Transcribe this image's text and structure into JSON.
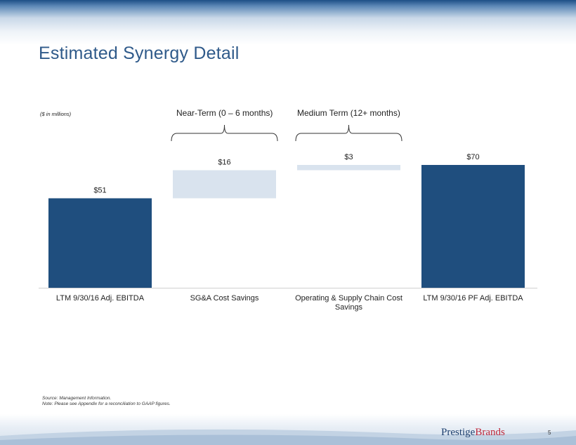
{
  "slide": {
    "title": "Estimated Synergy Detail",
    "units_note": "($ in millions)",
    "page_number": "5"
  },
  "brackets": [
    {
      "label": "Near-Term  (0 – 6 months)",
      "spans_category_index": 1
    },
    {
      "label": "Medium Term (12+ months)",
      "spans_category_index": 2
    }
  ],
  "footnotes": [
    "Source: Management  Information.",
    "Note: Please see Appendix for a reconciliation to GAAP figures."
  ],
  "logo": {
    "part1": "Prestige",
    "part2": "Brands"
  },
  "colors": {
    "total_bar": "#1f4e7e",
    "increment_bar": "#d9e3ee",
    "title": "#2f5a8a",
    "logo_accent": "#c0283a"
  },
  "chart_data": {
    "type": "waterfall",
    "categories": [
      "LTM 9/30/16 Adj. EBITDA",
      "SG&A Cost Savings",
      "Operating & Supply Chain Cost Savings",
      "LTM 9/30/16 PF Adj. EBITDA"
    ],
    "values": [
      51,
      16,
      3,
      70
    ],
    "bar_kinds": [
      "total",
      "increment",
      "increment",
      "total"
    ],
    "data_labels": [
      "$51",
      "$16",
      "$3",
      "$70"
    ],
    "ylim": [
      0,
      70
    ],
    "grid": false,
    "legend": "none"
  }
}
